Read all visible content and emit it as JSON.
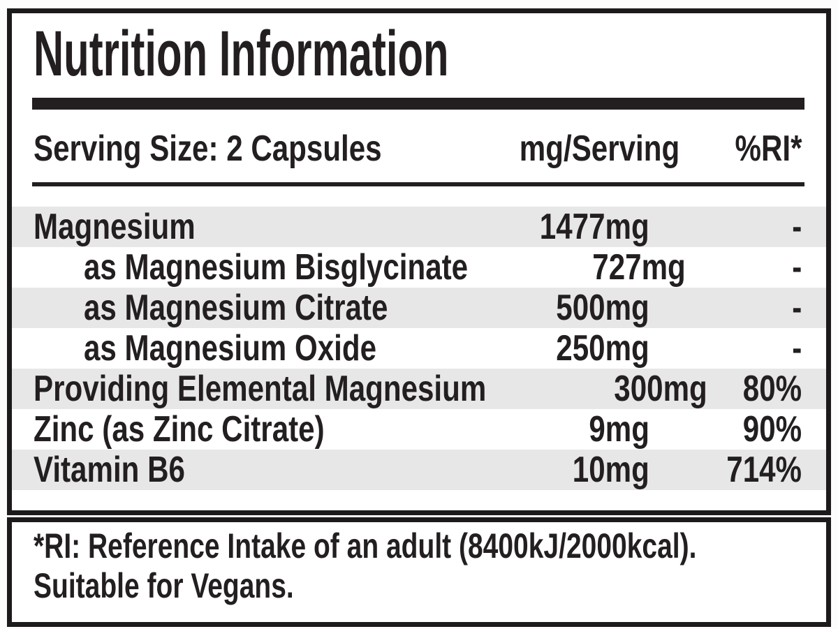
{
  "label": {
    "title": "Nutrition Information",
    "header": {
      "serving": "Serving Size: 2 Capsules",
      "amount_col": "mg/Serving",
      "ri_col": "%RI*"
    },
    "rows": [
      {
        "name": "Magnesium",
        "indent": false,
        "amount": "1477mg",
        "ri": "-",
        "shaded": true
      },
      {
        "name": "as Magnesium Bisglycinate",
        "indent": true,
        "amount": "727mg",
        "ri": "-",
        "shaded": false
      },
      {
        "name": "as Magnesium Citrate",
        "indent": true,
        "amount": "500mg",
        "ri": "-",
        "shaded": true
      },
      {
        "name": "as Magnesium Oxide",
        "indent": true,
        "amount": "250mg",
        "ri": "-",
        "shaded": false
      },
      {
        "name": "Providing Elemental Magnesium",
        "indent": false,
        "amount": "300mg",
        "ri": "80%",
        "shaded": true
      },
      {
        "name": "Zinc (as Zinc Citrate)",
        "indent": false,
        "amount": "9mg",
        "ri": "90%",
        "shaded": false
      },
      {
        "name": "Vitamin B6",
        "indent": false,
        "amount": "10mg",
        "ri": "714%",
        "shaded": true
      }
    ],
    "footnote_line1": "*RI: Reference Intake of an adult (8400kJ/2000kcal).",
    "footnote_line2": "Suitable for Vegans.",
    "colors": {
      "text": "#231f20",
      "border": "#1d1a1b",
      "stripe": "#e8e7e8",
      "background": "#fcfcfc"
    }
  }
}
